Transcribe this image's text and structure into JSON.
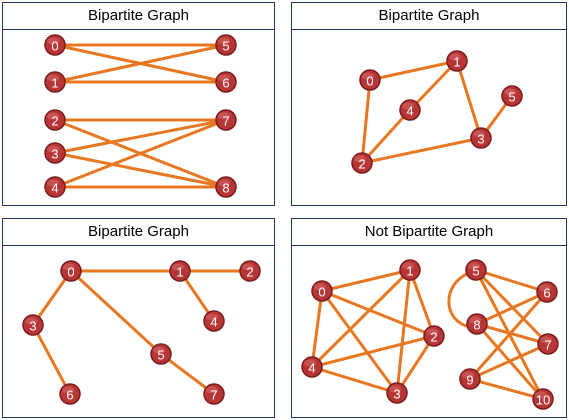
{
  "panels": [
    {
      "title": "Bipartite Graph",
      "nodes": [
        "0",
        "1",
        "2",
        "3",
        "4",
        "5",
        "6",
        "7",
        "8"
      ],
      "edges": [
        [
          "0",
          "5"
        ],
        [
          "0",
          "6"
        ],
        [
          "1",
          "5"
        ],
        [
          "1",
          "6"
        ],
        [
          "2",
          "7"
        ],
        [
          "2",
          "8"
        ],
        [
          "3",
          "7"
        ],
        [
          "3",
          "8"
        ],
        [
          "4",
          "7"
        ],
        [
          "4",
          "8"
        ]
      ]
    },
    {
      "title": "Bipartite Graph",
      "nodes": [
        "0",
        "1",
        "2",
        "3",
        "4",
        "5"
      ],
      "edges": [
        [
          "0",
          "1"
        ],
        [
          "0",
          "2"
        ],
        [
          "1",
          "4"
        ],
        [
          "1",
          "3"
        ],
        [
          "4",
          "2"
        ],
        [
          "2",
          "3"
        ],
        [
          "3",
          "5"
        ]
      ]
    },
    {
      "title": "Bipartite Graph",
      "nodes": [
        "0",
        "1",
        "2",
        "3",
        "4",
        "5",
        "6",
        "7"
      ],
      "edges": [
        [
          "0",
          "1"
        ],
        [
          "1",
          "2"
        ],
        [
          "1",
          "4"
        ],
        [
          "0",
          "3"
        ],
        [
          "3",
          "6"
        ],
        [
          "0",
          "5"
        ],
        [
          "5",
          "7"
        ]
      ]
    },
    {
      "title": "Not Bipartite Graph",
      "nodes": [
        "0",
        "1",
        "2",
        "3",
        "4",
        "5",
        "6",
        "7",
        "8",
        "9",
        "10"
      ],
      "edges": [
        [
          "0",
          "1"
        ],
        [
          "0",
          "2"
        ],
        [
          "0",
          "3"
        ],
        [
          "0",
          "4"
        ],
        [
          "1",
          "4"
        ],
        [
          "1",
          "3"
        ],
        [
          "1",
          "2"
        ],
        [
          "4",
          "2"
        ],
        [
          "4",
          "3"
        ],
        [
          "2",
          "3"
        ],
        [
          "5",
          "8"
        ],
        [
          "5",
          "6"
        ],
        [
          "5",
          "7"
        ],
        [
          "5",
          "10"
        ],
        [
          "8",
          "6"
        ],
        [
          "8",
          "7"
        ],
        [
          "8",
          "10"
        ],
        [
          "6",
          "9"
        ],
        [
          "7",
          "9"
        ],
        [
          "9",
          "10"
        ]
      ]
    }
  ],
  "colors": {
    "edge": "#e87722",
    "node": "#b83535",
    "node_text": "#ffffff",
    "border": "#1f3864"
  }
}
